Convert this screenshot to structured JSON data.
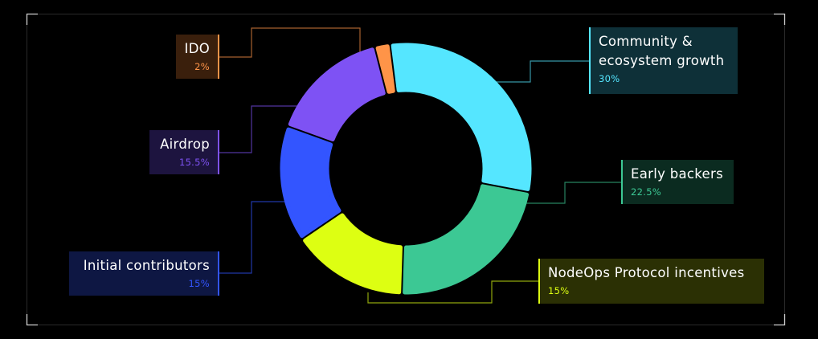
{
  "chart_data": {
    "type": "pie",
    "variant": "donut",
    "categories": [
      "Community &\necosystem growth",
      "Early backers",
      "NodeOps Protocol incentives",
      "Initial contributors",
      "Airdrop",
      "IDO"
    ],
    "values": [
      30,
      22.5,
      15,
      15,
      15.5,
      2
    ],
    "labels": [
      "30%",
      "22.5%",
      "15%",
      "15%",
      "15.5%",
      "2%"
    ],
    "colors": [
      "#55E6FF",
      "#3CC894",
      "#DDFF12",
      "#3355FF",
      "#7E52F4",
      "#FF9448"
    ],
    "legend": "callouts"
  },
  "slices": [
    {
      "name": "Community &\necosystem growth",
      "pct": "30%",
      "color": "#55E6FF",
      "box_bg": "#0E3038",
      "pct_color": "#55E6FF"
    },
    {
      "name": "Early backers",
      "pct": "22.5%",
      "color": "#3CC894",
      "box_bg": "#0B2B20",
      "pct_color": "#3CC894"
    },
    {
      "name": "NodeOps Protocol incentives",
      "pct": "15%",
      "color": "#DDFF12",
      "box_bg": "#2B3004",
      "pct_color": "#DDFF12"
    },
    {
      "name": "Initial contributors",
      "pct": "15%",
      "color": "#3355FF",
      "box_bg": "#0E1743",
      "pct_color": "#3355FF"
    },
    {
      "name": "Airdrop",
      "pct": "15.5%",
      "color": "#7E52F4",
      "box_bg": "#1D143F",
      "pct_color": "#7E52F4"
    },
    {
      "name": "IDO",
      "pct": "2%",
      "color": "#FF9448",
      "box_bg": "#3A1F0C",
      "pct_color": "#FF9448"
    }
  ]
}
